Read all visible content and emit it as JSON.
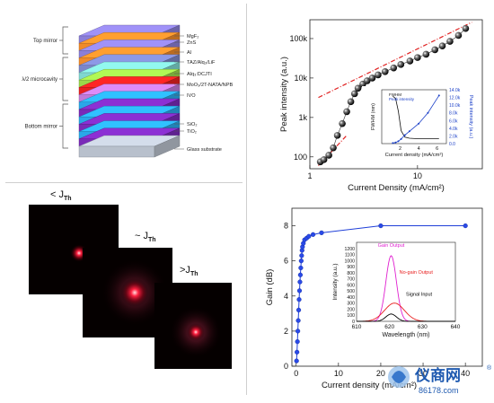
{
  "stack": {
    "groups": [
      {
        "label": "Top mirror"
      },
      {
        "label": "λ/2 microcavity"
      },
      {
        "label": "Bottom mirror"
      }
    ],
    "layers": [
      {
        "label": "MgF₂",
        "color": "#8b7fd8"
      },
      {
        "label": "ZnS",
        "color": "#f08a2a"
      },
      {
        "label": "Al",
        "color": "#7b85c8"
      },
      {
        "label": "TAZ/Alq₃/LiF",
        "color": "#7fd8d0"
      },
      {
        "label": "Alq₃:DCJTI",
        "color": "#9ad84a"
      },
      {
        "label": "MoO₃/2T-NATA/NPB",
        "color": "#e82020"
      },
      {
        "label": "IVO",
        "color": "#c07ad8"
      },
      {
        "label": "SiO₂",
        "color": "#2aa8e8"
      },
      {
        "label": "TiO₂",
        "color": "#7a2ab8"
      },
      {
        "label": "Glass substrate",
        "color": "#b8c0cc"
      }
    ]
  },
  "spots": {
    "labels": [
      {
        "main": "< J",
        "sub": "Th"
      },
      {
        "main": "~ J",
        "sub": "Th"
      },
      {
        "main": ">J",
        "sub": "Th"
      }
    ]
  },
  "chart_data": [
    {
      "type": "scatter",
      "xlabel": "Current Density (mA/cm²)",
      "ylabel": "Peak intensity (a.u.)",
      "xscale": "log",
      "yscale": "log",
      "xlim": [
        1,
        40
      ],
      "ylim": [
        50,
        300000
      ],
      "xticks": [
        {
          "v": 1,
          "label": "1"
        },
        {
          "v": 10,
          "label": "10"
        }
      ],
      "yticks": [
        {
          "v": 100,
          "label": "100"
        },
        {
          "v": 1000,
          "label": "1k"
        },
        {
          "v": 10000,
          "label": "10k"
        },
        {
          "v": 100000,
          "label": "100k"
        }
      ],
      "x": [
        1.25,
        1.35,
        1.5,
        1.65,
        1.8,
        2.0,
        2.2,
        2.4,
        2.6,
        2.8,
        3.1,
        3.4,
        3.8,
        4.3,
        5,
        6,
        7,
        8.5,
        10,
        12,
        14.5,
        17,
        20,
        24,
        28
      ],
      "y": [
        75,
        85,
        110,
        170,
        350,
        700,
        1400,
        2500,
        4000,
        5500,
        7000,
        8500,
        10000,
        12000,
        14500,
        18000,
        22000,
        27000,
        33000,
        40000,
        52000,
        65000,
        85000,
        120000,
        180000
      ],
      "fit_lines": [
        {
          "x": [
            1.2,
            2.2
          ],
          "y": [
            60,
            350
          ]
        },
        {
          "x": [
            1.2,
            32
          ],
          "y": [
            3200,
            260000
          ]
        }
      ],
      "grid": false,
      "inset": {
        "type": "line",
        "xlabel": "Current density (mA/cm²)",
        "ylabel_left": "FWHM (nm)",
        "ylabel_right": "Peak intensity (a.u.)",
        "xlim": [
          0,
          7
        ],
        "ylim_left": [
          0,
          50
        ],
        "ylim_right": [
          0,
          14000
        ],
        "xticks": [
          2,
          4,
          6
        ],
        "yticks_right": [
          "0.0",
          "2.0k",
          "4.0k",
          "6.0k",
          "8.0k",
          "10.0k",
          "12.0k",
          "14.0k"
        ],
        "legend": [
          "FWHM",
          "Peak intensity"
        ],
        "fwhm": {
          "x": [
            1.2,
            1.5,
            1.8,
            2.1,
            2.5,
            3,
            4,
            5,
            6.2
          ],
          "y": [
            44,
            42,
            30,
            12,
            6,
            5,
            4.5,
            4.5,
            4.5
          ]
        },
        "peak": {
          "x": [
            1.2,
            1.5,
            1.8,
            2.1,
            2.5,
            3,
            4,
            5,
            6.2
          ],
          "y": [
            150,
            300,
            600,
            1200,
            2200,
            3200,
            5200,
            8000,
            12500
          ]
        }
      }
    },
    {
      "type": "line",
      "xlabel": "Current density (mA/cm²)",
      "ylabel": "Gain (dB)",
      "xlim": [
        -1,
        44
      ],
      "ylim": [
        0,
        9
      ],
      "xticks": [
        0,
        10,
        20,
        30,
        40
      ],
      "yticks": [
        0,
        2,
        4,
        6,
        8
      ],
      "x": [
        0.1,
        0.2,
        0.3,
        0.4,
        0.5,
        0.6,
        0.7,
        0.8,
        0.9,
        1.0,
        1.1,
        1.2,
        1.3,
        1.4,
        1.5,
        1.7,
        2.0,
        2.5,
        3.0,
        4.0,
        6.0,
        20.0,
        40.0
      ],
      "y": [
        0.3,
        0.8,
        1.4,
        2.0,
        2.6,
        3.2,
        3.8,
        4.3,
        4.8,
        5.2,
        5.6,
        6.0,
        6.3,
        6.6,
        6.8,
        7.0,
        7.2,
        7.3,
        7.4,
        7.5,
        7.6,
        8.0,
        8.0
      ],
      "inset": {
        "type": "line",
        "xlabel": "Wavelength (nm)",
        "ylabel": "Intensity (a.u.)",
        "xlim": [
          610,
          640
        ],
        "ylim": [
          0,
          1300
        ],
        "xticks": [
          610,
          620,
          630,
          640
        ],
        "yticks": [
          0,
          100,
          200,
          300,
          400,
          500,
          600,
          700,
          800,
          900,
          1000,
          1100,
          1200
        ],
        "series": [
          {
            "name": "Gain Output",
            "color": "#e020d0",
            "center": 620.5,
            "width": 1.6,
            "peak": 1080
          },
          {
            "name": "No-gain Output",
            "color": "#e82020",
            "center": 621.5,
            "width": 3.0,
            "peak": 300
          },
          {
            "name": "Signal Input",
            "color": "#000000",
            "center": 620.5,
            "width": 1.6,
            "peak": 120
          }
        ]
      }
    }
  ],
  "watermark": {
    "name": "仪商网",
    "url": "86178.com"
  }
}
